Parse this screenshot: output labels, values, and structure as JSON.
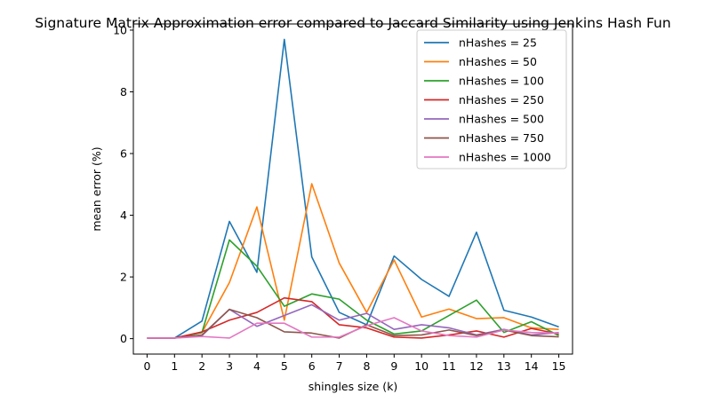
{
  "chart_data": {
    "type": "line",
    "title": "Signature Matrix Approximation error compared to Jaccard Similarity using Jenkins Hash Fun",
    "xlabel": "shingles size (k)",
    "ylabel": "mean error (%)",
    "xlim": [
      -0.5,
      15.5
    ],
    "ylim": [
      -0.5,
      10.2
    ],
    "x": [
      0,
      1,
      2,
      3,
      4,
      5,
      6,
      7,
      8,
      9,
      10,
      11,
      12,
      13,
      14,
      15
    ],
    "xticks": [
      "0",
      "1",
      "2",
      "3",
      "4",
      "5",
      "6",
      "7",
      "8",
      "9",
      "10",
      "11",
      "12",
      "13",
      "14",
      "15"
    ],
    "yticks": [
      "0",
      "2",
      "4",
      "6",
      "8",
      "10"
    ],
    "ytick_values": [
      0,
      2,
      4,
      6,
      8,
      10
    ],
    "grid": false,
    "legend_position": "top-right",
    "series": [
      {
        "name": "nHashes = 25",
        "color": "#1f77b4",
        "values": [
          0.02,
          0.02,
          0.57,
          3.8,
          2.15,
          9.7,
          2.65,
          0.85,
          0.45,
          2.68,
          1.92,
          1.37,
          3.45,
          0.92,
          0.7,
          0.38
        ]
      },
      {
        "name": "nHashes = 50",
        "color": "#ff7f0e",
        "values": [
          0.02,
          0.02,
          0.2,
          1.82,
          4.27,
          0.6,
          5.02,
          2.45,
          0.85,
          2.55,
          0.7,
          0.96,
          0.65,
          0.68,
          0.35,
          0.3
        ]
      },
      {
        "name": "nHashes = 100",
        "color": "#2ca02c",
        "values": [
          0.02,
          0.02,
          0.2,
          3.2,
          2.35,
          1.05,
          1.45,
          1.28,
          0.6,
          0.15,
          0.25,
          0.75,
          1.25,
          0.2,
          0.55,
          0.1
        ]
      },
      {
        "name": "nHashes = 250",
        "color": "#d62728",
        "values": [
          0.02,
          0.02,
          0.22,
          0.6,
          0.85,
          1.32,
          1.2,
          0.45,
          0.35,
          0.05,
          0.02,
          0.12,
          0.25,
          0.05,
          0.33,
          0.15
        ]
      },
      {
        "name": "nHashes = 500",
        "color": "#9467bd",
        "values": [
          0.02,
          0.02,
          0.1,
          0.95,
          0.4,
          0.75,
          1.1,
          0.6,
          0.82,
          0.3,
          0.45,
          0.35,
          0.12,
          0.3,
          0.12,
          0.2
        ]
      },
      {
        "name": "nHashes = 750",
        "color": "#8c564b",
        "values": [
          0.02,
          0.02,
          0.12,
          0.95,
          0.68,
          0.22,
          0.18,
          0.02,
          0.45,
          0.1,
          0.12,
          0.28,
          0.1,
          0.28,
          0.1,
          0.06
        ]
      },
      {
        "name": "nHashes = 1000",
        "color": "#e377c2",
        "values": [
          0.02,
          0.02,
          0.07,
          0.02,
          0.5,
          0.5,
          0.05,
          0.05,
          0.42,
          0.68,
          0.25,
          0.1,
          0.05,
          0.28,
          0.2,
          0.18
        ]
      }
    ]
  }
}
